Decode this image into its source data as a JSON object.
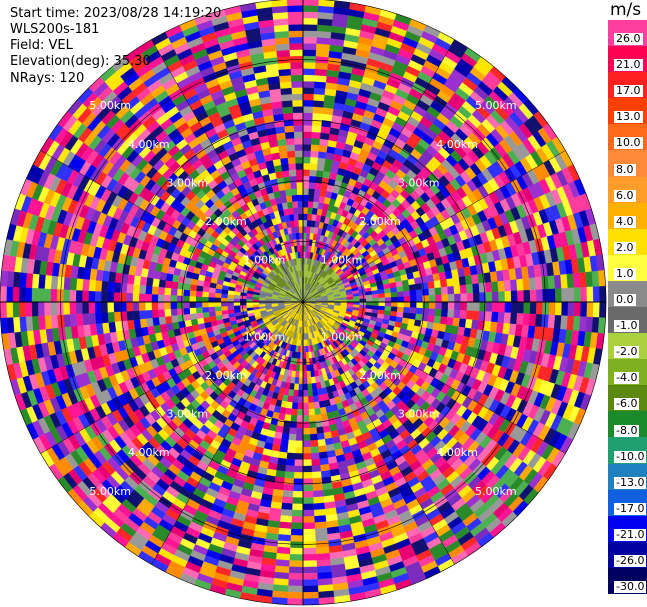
{
  "header": {
    "start_time": "Start time: 2023/08/28 14:19:20",
    "instrument": "WLS200s-181",
    "field": "Field: VEL",
    "elevation": "Elevation(deg): 35.30",
    "nrays": "NRays: 120"
  },
  "chart_data": {
    "type": "heatmap",
    "projection": "polar",
    "field": "VEL",
    "units": "m/s",
    "elevation_deg": 35.3,
    "nrays": 120,
    "range_ring_labels": [
      "1.00km",
      "2.00km",
      "3.00km",
      "4.00km",
      "5.00km"
    ],
    "colorbar": {
      "title": "m/s",
      "ticks": [
        "26.0",
        "21.0",
        "17.0",
        "13.0",
        "10.0",
        "8.0",
        "6.0",
        "4.0",
        "2.0",
        "1.0",
        "0.0",
        "-1.0",
        "-2.0",
        "-4.0",
        "-6.0",
        "-8.0",
        "-10.0",
        "-13.0",
        "-17.0",
        "-21.0",
        "-26.0",
        "-30.0"
      ],
      "colors": [
        "#ff3fa0",
        "#ff0055",
        "#ff2020",
        "#ff4000",
        "#ff6a1a",
        "#ff8a3a",
        "#ff9c2a",
        "#ffb000",
        "#ffe000",
        "#ffff40",
        "#8a8a8a",
        "#6a6a6a",
        "#aad040",
        "#7fb020",
        "#5c8a10",
        "#1a8a2a",
        "#20a070",
        "#2080c0",
        "#1060e0",
        "#0000f0",
        "#0000a0",
        "#000060"
      ]
    },
    "noise_palette": [
      "#ff1493",
      "#ff3c9d",
      "#ff2828",
      "#0000ee",
      "#0000aa",
      "#101070",
      "#7b2cbf",
      "#9b30d0",
      "#ffe600",
      "#ffff33",
      "#ff8c00",
      "#ffaa00",
      "#2a8a2a",
      "#4caf50",
      "#999999",
      "#ff69b4",
      "#e60073",
      "#3030ff"
    ]
  }
}
